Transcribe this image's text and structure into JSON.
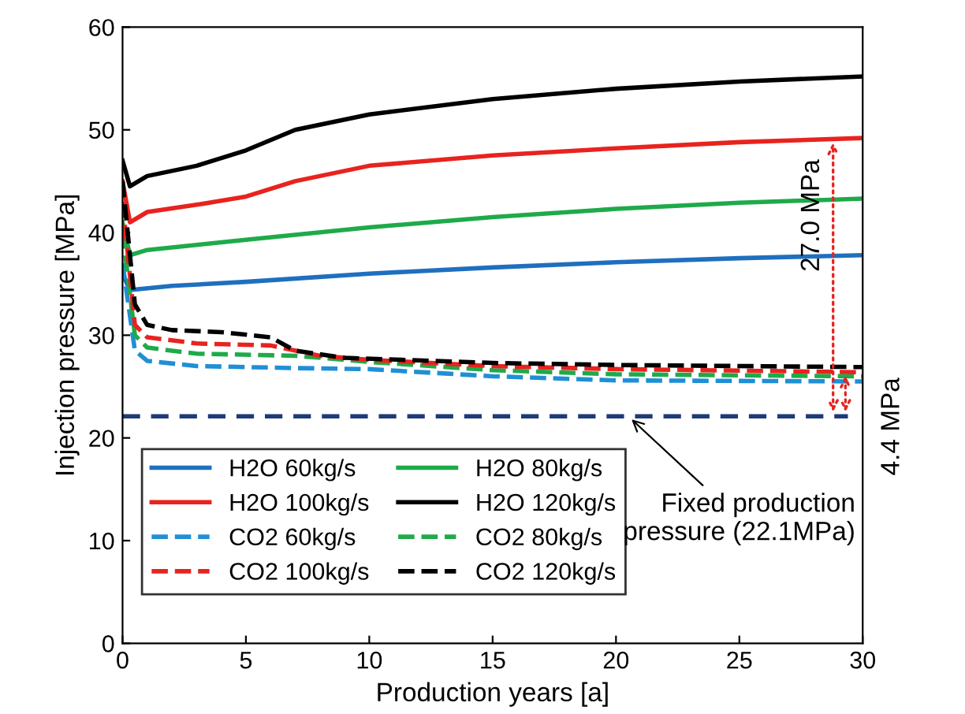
{
  "chart_data": {
    "type": "line",
    "xlabel": "Production years [a]",
    "ylabel": "Injection pressure [MPa]",
    "xlim": [
      0,
      30
    ],
    "ylim": [
      0,
      60
    ],
    "xticks": [
      0,
      5,
      10,
      15,
      20,
      25,
      30
    ],
    "yticks": [
      0,
      10,
      20,
      30,
      40,
      50,
      60
    ],
    "grid": false,
    "legend": "bottom left",
    "marker": "none",
    "series": [
      {
        "name": "H2O 60kg/s",
        "color": "#1f6fbf",
        "line_style": "solid",
        "x": [
          0,
          0.3,
          2,
          5,
          10,
          15,
          20,
          25,
          30
        ],
        "values": [
          36,
          34.4,
          34.8,
          35.2,
          36,
          36.6,
          37.1,
          37.5,
          37.8
        ]
      },
      {
        "name": "H2O 80kg/s",
        "color": "#1faa4a",
        "line_style": "solid",
        "x": [
          0,
          0.3,
          1,
          3,
          5,
          10,
          15,
          20,
          25,
          30
        ],
        "values": [
          41,
          37.8,
          38.3,
          38.8,
          39.3,
          40.5,
          41.5,
          42.3,
          42.9,
          43.3
        ]
      },
      {
        "name": "H2O 100kg/s",
        "color": "#e8231f",
        "line_style": "solid",
        "x": [
          0,
          0.3,
          1,
          3,
          5,
          7,
          10,
          15,
          20,
          25,
          30
        ],
        "values": [
          45,
          41,
          42,
          42.7,
          43.5,
          45,
          46.5,
          47.5,
          48.2,
          48.8,
          49.2
        ]
      },
      {
        "name": "H2O 120kg/s",
        "color": "#000000",
        "line_style": "solid",
        "x": [
          0,
          0.3,
          1,
          3,
          5,
          7,
          10,
          15,
          20,
          25,
          30
        ],
        "values": [
          47,
          44.5,
          45.5,
          46.5,
          48,
          50,
          51.5,
          53,
          54,
          54.7,
          55.2
        ]
      },
      {
        "name": "CO2 60kg/s",
        "color": "#1f8fd6",
        "line_style": "dashed",
        "x": [
          0,
          0.5,
          1,
          3,
          7,
          10,
          15,
          20,
          30
        ],
        "values": [
          37,
          28.5,
          27.5,
          27,
          26.8,
          26.7,
          26,
          25.6,
          25.5
        ]
      },
      {
        "name": "CO2 80kg/s",
        "color": "#1faa4a",
        "line_style": "dashed",
        "x": [
          0,
          0.5,
          1,
          3,
          7,
          10,
          15,
          20,
          30
        ],
        "values": [
          40,
          30,
          28.8,
          28.2,
          28,
          27.4,
          26.6,
          26.2,
          26
        ]
      },
      {
        "name": "CO2 100kg/s",
        "color": "#e8231f",
        "line_style": "dashed",
        "x": [
          0,
          0.5,
          1,
          3,
          6,
          8,
          10,
          15,
          20,
          30
        ],
        "values": [
          43,
          31,
          29.8,
          29.2,
          29,
          28,
          27.6,
          27,
          26.7,
          26.4
        ]
      },
      {
        "name": "CO2 120kg/s",
        "color": "#000000",
        "line_style": "dashed",
        "x": [
          0,
          0.5,
          1,
          2,
          4,
          6,
          7,
          9,
          15,
          20,
          30
        ],
        "values": [
          45,
          33,
          31,
          30.5,
          30.3,
          29.8,
          28.5,
          27.8,
          27.3,
          27.1,
          26.9
        ]
      }
    ],
    "ref_lines": [
      {
        "axis": "y",
        "value": 22.1,
        "color": "#1f3a78",
        "line_style": "dashed"
      }
    ],
    "annotations": [
      {
        "text": "27.0 MPa",
        "x": 28.8,
        "y": 49.2
      },
      {
        "text": "4.4 MPa",
        "x": 29.3,
        "y": 26.5
      },
      {
        "text": "Fixed production\npressure (22.1MPa)",
        "x": 20.5,
        "y": 22.1
      }
    ]
  }
}
